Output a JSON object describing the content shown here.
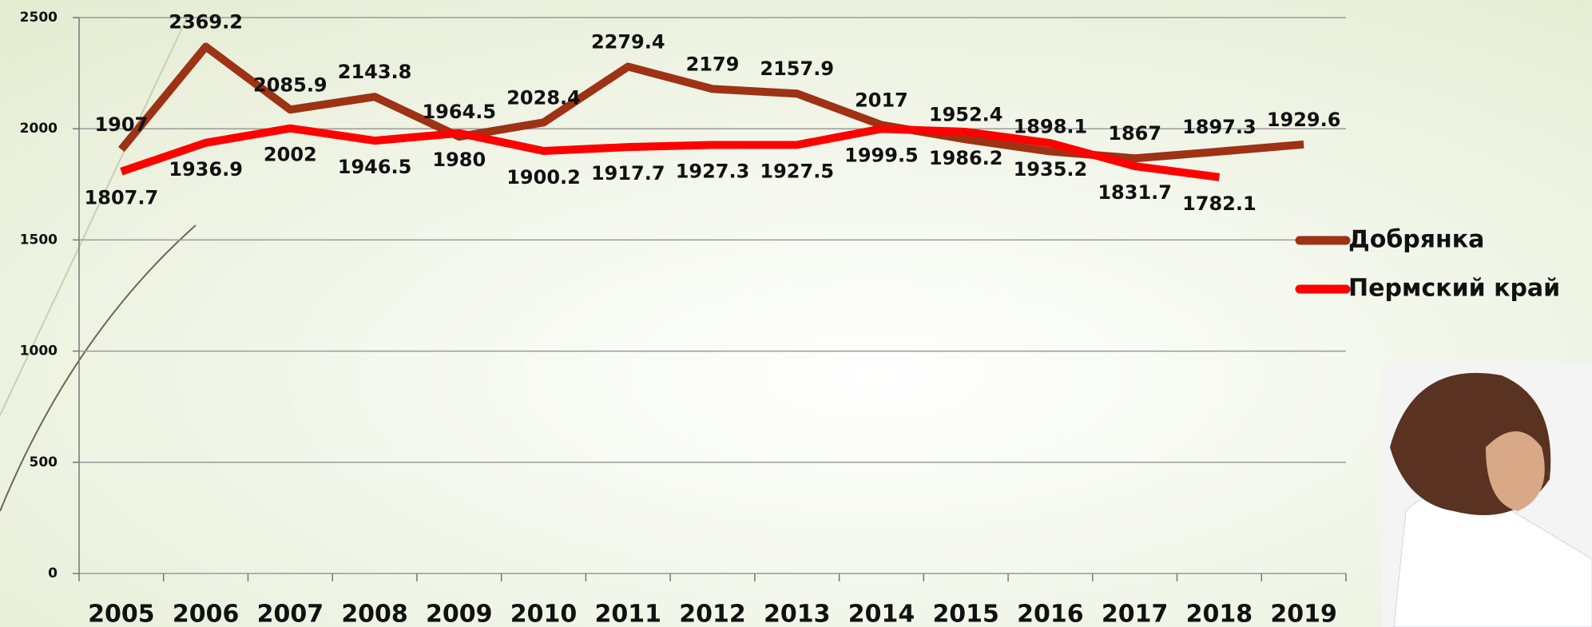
{
  "chart_data": {
    "type": "line",
    "categories": [
      "2005",
      "2006",
      "2007",
      "2008",
      "2009",
      "2010",
      "2011",
      "2012",
      "2013",
      "2014",
      "2015",
      "2016",
      "2017",
      "2018",
      "2019"
    ],
    "series": [
      {
        "name": "Добрянка",
        "color": "#9e3214",
        "values": [
          1907,
          2369.2,
          2085.9,
          2143.8,
          1964.5,
          2028.4,
          2279.4,
          2179,
          2157.9,
          2017,
          1952.4,
          1898.1,
          1867,
          1897.3,
          1929.6
        ]
      },
      {
        "name": "Пермский край",
        "color": "#ff0000",
        "values": [
          1807.7,
          1936.9,
          2002,
          1946.5,
          1980,
          1900.2,
          1917.7,
          1927.3,
          1927.5,
          1999.5,
          1986.2,
          1935.2,
          1831.7,
          1782.1,
          null
        ]
      }
    ],
    "ylim": [
      0,
      2500
    ],
    "yticks": [
      0,
      500,
      1000,
      1500,
      2000,
      2500
    ],
    "grid": true
  }
}
